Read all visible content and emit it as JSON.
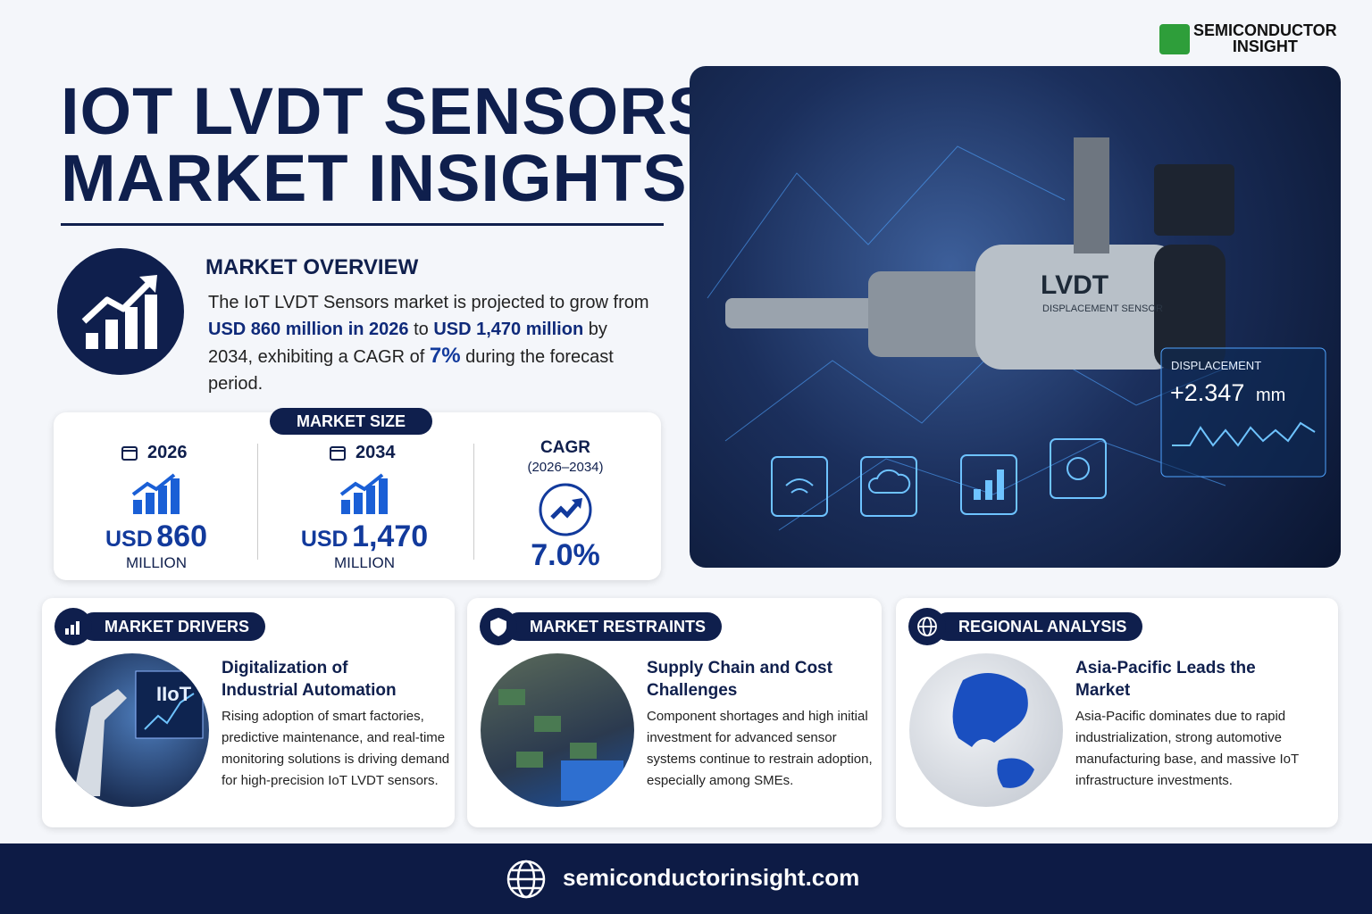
{
  "logo": {
    "line1": "SEMICONDUCTOR",
    "line2": "INSIGHT"
  },
  "header": {
    "title_line1": "IOT LVDT SENSORS",
    "title_line2": "MARKET INSIGHTS"
  },
  "overview": {
    "heading": "MARKET OVERVIEW",
    "text": [
      "The IoT LVDT Sensors market is projected to grow from ",
      "USD 860 million in 2026",
      " to ",
      "USD 1,470 million",
      " by 2034, exhibiting a CAGR of ",
      "7%",
      " during the forecast period."
    ]
  },
  "market_size": {
    "label": "MARKET SIZE",
    "items": [
      {
        "year": "2026",
        "currency": "USD",
        "amount": "860",
        "unit": "MILLION"
      },
      {
        "year": "2034",
        "currency": "USD",
        "amount": "1,470",
        "unit": "MILLION"
      }
    ],
    "cagr": {
      "label": "CAGR",
      "period": "(2026–2034)",
      "value": "7.0%"
    }
  },
  "hero": {
    "sensor_label": "LVDT",
    "sensor_sub": "DISPLACEMENT SENSOR",
    "readout_label": "DISPLACEMENT",
    "readout_value": "+2.347",
    "readout_unit": "mm"
  },
  "sections": [
    {
      "heading": "MARKET DRIVERS",
      "image_text": "IIoT",
      "title": "Digitalization of Industrial Automation",
      "body": "Rising adoption of smart factories, predictive maintenance, and real-time monitoring solutions is driving demand for high-precision IoT LVDT sensors."
    },
    {
      "heading": "MARKET RESTRAINTS",
      "title": "Supply Chain and Cost Challenges",
      "body": "Component shortages and high initial investment for advanced sensor systems continue to restrain adoption, especially among SMEs."
    },
    {
      "heading": "REGIONAL ANALYSIS",
      "title": "Asia-Pacific Leads the Market",
      "body": "Asia-Pacific dominates due to rapid industrialization, strong automotive manufacturing base, and massive IoT infrastructure investments."
    }
  ],
  "footer": {
    "url": "semiconductorinsight.com"
  }
}
